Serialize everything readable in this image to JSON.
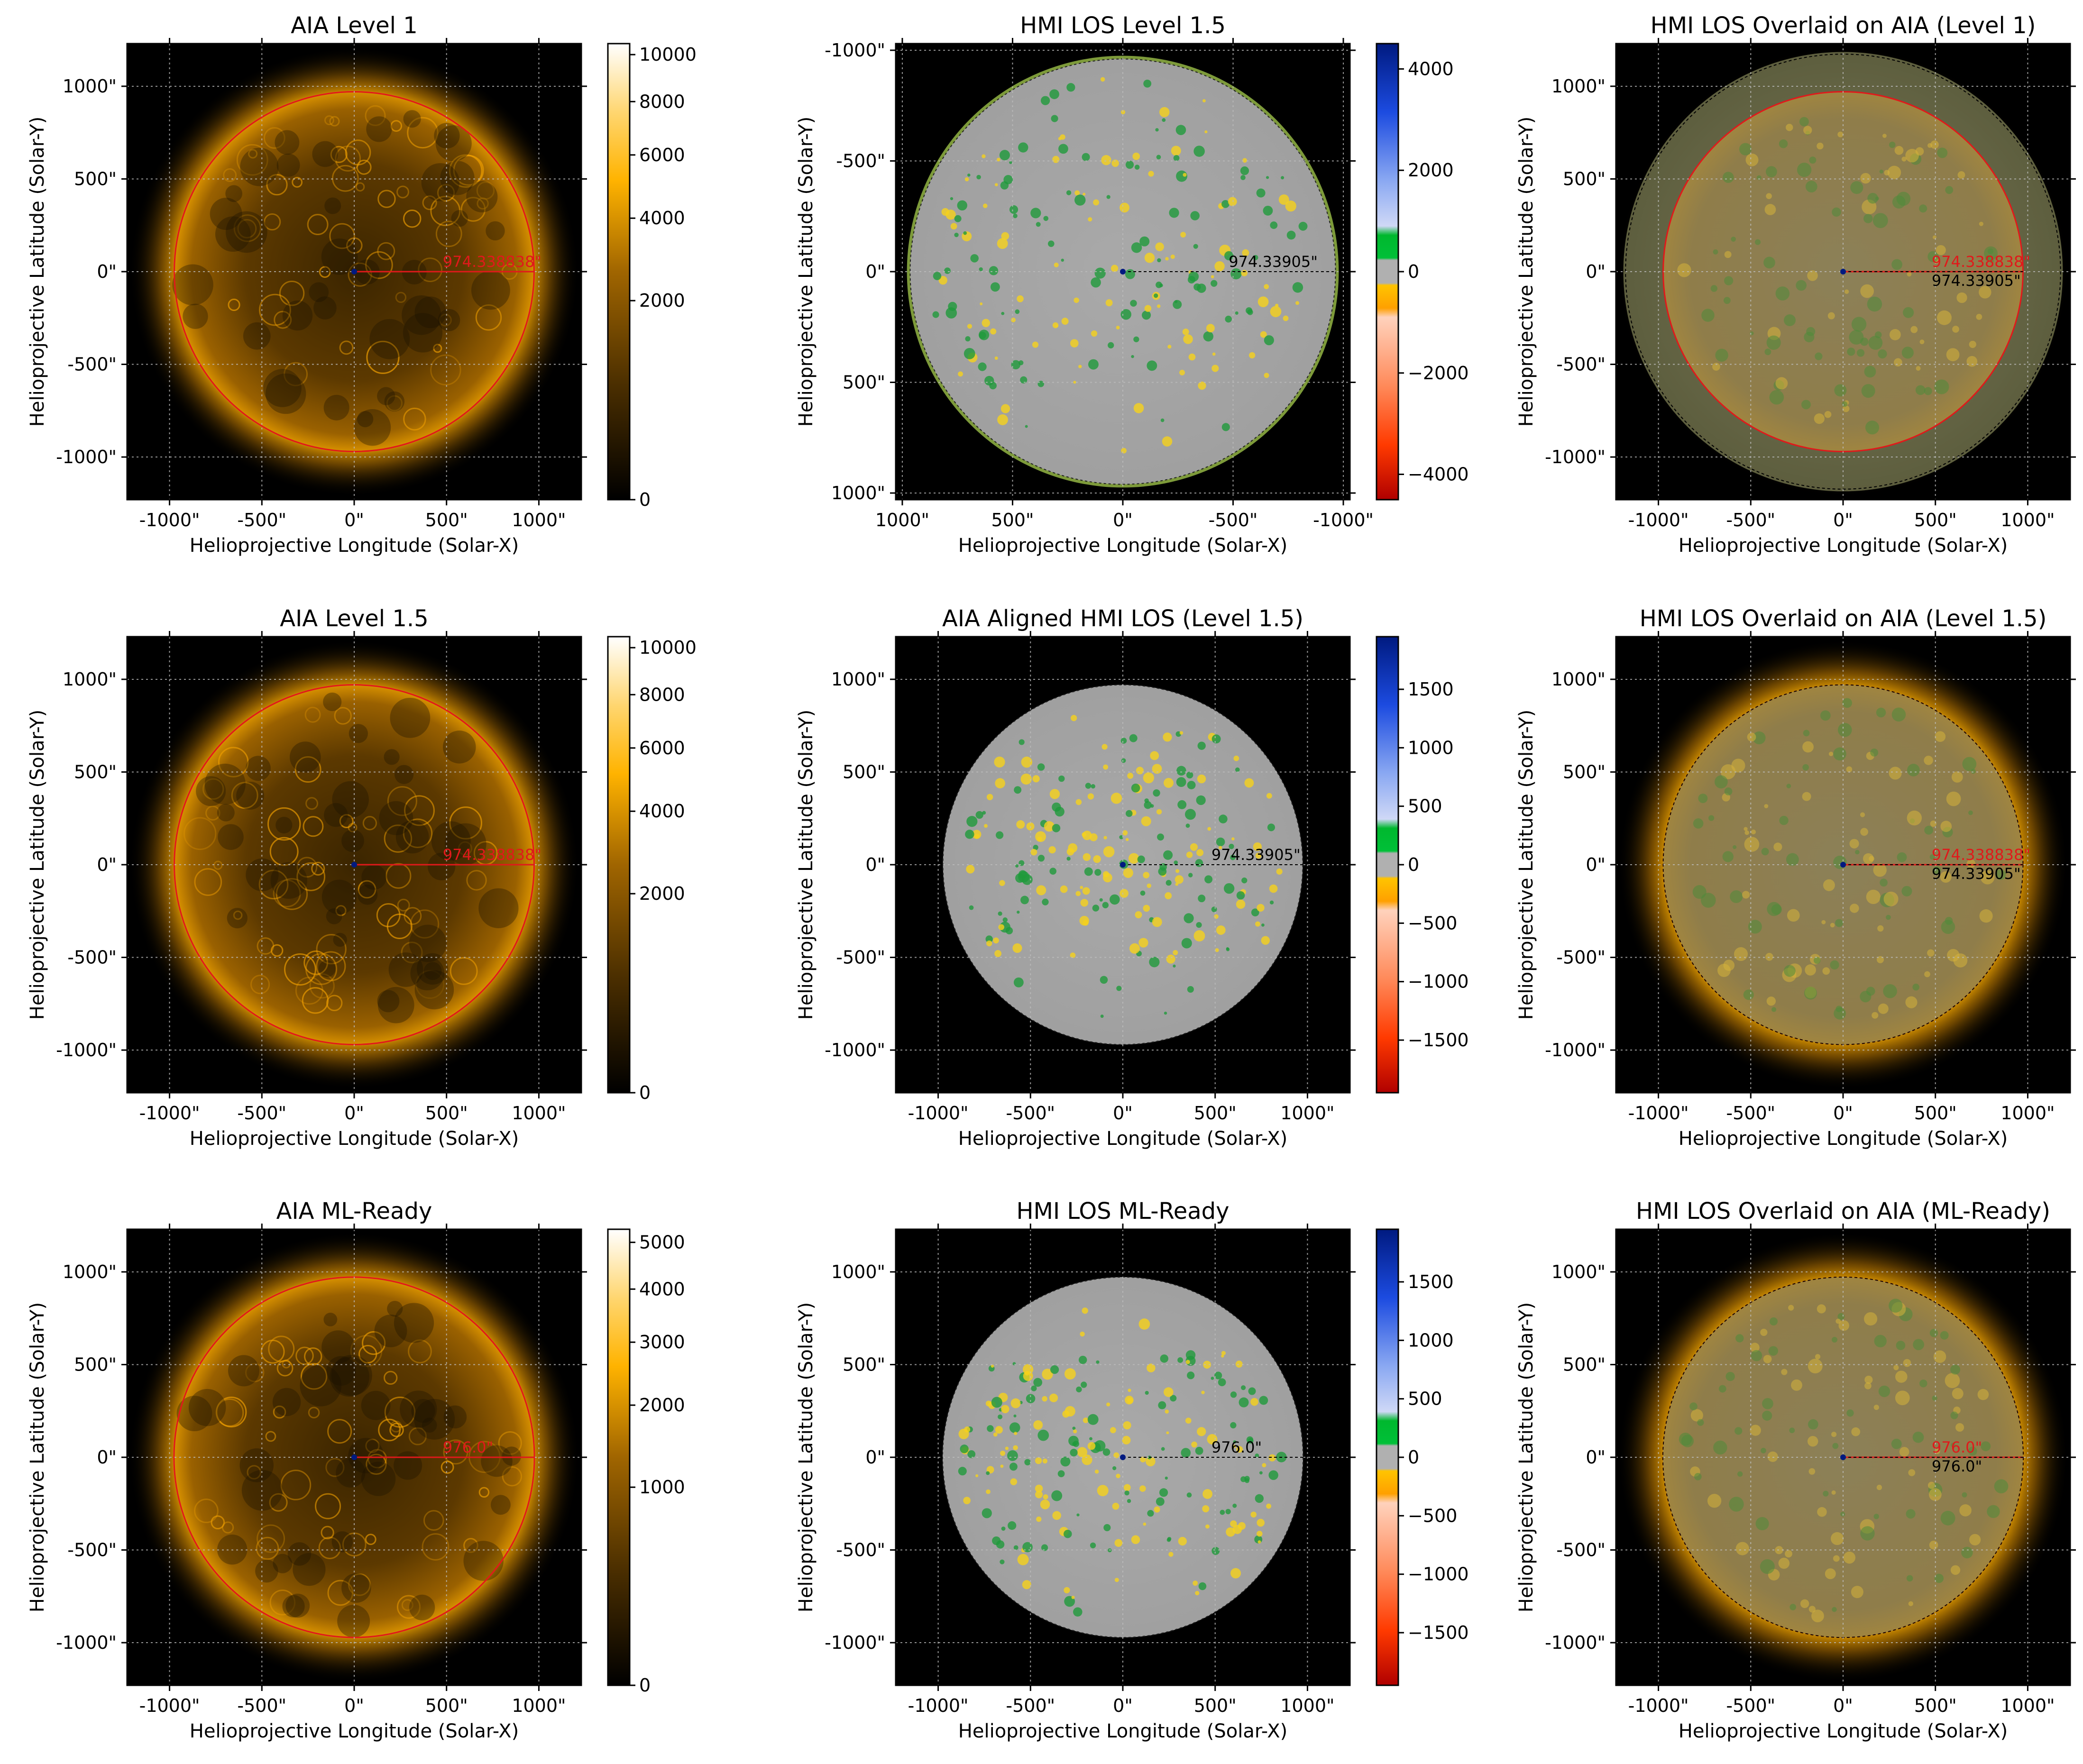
{
  "figure": {
    "background": "#ffffff"
  },
  "colors": {
    "aia_sun_core": "#3a2400",
    "aia_sun_mid": "#7a4b00",
    "aia_sun_limb": "#f2a400",
    "aia_corona": "#ffb300",
    "limb_circle": "#e0191b",
    "hmi_disk": "#a6a6a6",
    "hmi_positive": "#f6d21b",
    "hmi_negative": "#1f9a3b",
    "hmi_limb": "#7d9a3a",
    "overlay_disk": "#8a7c50",
    "radius_red": "#e0191b",
    "radius_black": "#000000",
    "center_dot": "#001a80",
    "grid": "#bdbdbd"
  },
  "chart_data": [
    {
      "id": "p11",
      "type": "heatmap",
      "kind": "aia",
      "title": "AIA Level 1",
      "xlabel": "Helioprojective Longitude (Solar-X)",
      "ylabel": "Helioprojective Latitude (Solar-Y)",
      "xlim": [
        -1230,
        1230
      ],
      "ylim": [
        -1230,
        1230
      ],
      "xticks": [
        -1000,
        -500,
        0,
        500,
        1000
      ],
      "xtick_labels": [
        "-1000\"",
        "-500\"",
        "0\"",
        "500\"",
        "1000\""
      ],
      "yticks": [
        1000,
        500,
        0,
        -500,
        -1000
      ],
      "ytick_labels": [
        "1000\"",
        "500\"",
        "0\"",
        "-500\"",
        "-1000\""
      ],
      "limb_radius": 974.338838,
      "radius_labels": [
        {
          "text": "974.338838\"",
          "color": "red"
        }
      ],
      "colorbar": {
        "scale": "sqrt",
        "min": 0,
        "max": 10500,
        "ticks": [
          0,
          2000,
          4000,
          6000,
          8000,
          10000
        ],
        "tick_labels": [
          "0",
          "2000",
          "4000",
          "6000",
          "8000",
          "10000"
        ]
      }
    },
    {
      "id": "p12",
      "type": "heatmap",
      "kind": "hmi",
      "title": "HMI LOS Level 1.5",
      "xlabel": "Helioprojective Longitude (Solar-X)",
      "ylabel": "Helioprojective Latitude (Solar-Y)",
      "xlim": [
        1030,
        -1030
      ],
      "ylim": [
        1030,
        -1030
      ],
      "xticks": [
        1000,
        500,
        0,
        -500,
        -1000
      ],
      "xtick_labels": [
        "1000\"",
        "500\"",
        "0\"",
        "-500\"",
        "-1000\""
      ],
      "yticks": [
        -1000,
        -500,
        0,
        500,
        1000
      ],
      "ytick_labels": [
        "-1000\"",
        "-500\"",
        "0\"",
        "500\"",
        "1000\""
      ],
      "limb_radius": 974.33905,
      "limb_ring": true,
      "radius_labels": [
        {
          "text": "974.33905\"",
          "color": "black"
        }
      ],
      "colorbar": {
        "scale": "linear",
        "min": -4500,
        "max": 4500,
        "ticks": [
          4000,
          2000,
          0,
          -2000,
          -4000
        ],
        "tick_labels": [
          "4000",
          "2000",
          "0",
          "−2000",
          "−4000"
        ]
      }
    },
    {
      "id": "p13",
      "type": "heatmap",
      "kind": "overlay",
      "title": "HMI LOS Overlaid on AIA (Level 1)",
      "xlabel": "Helioprojective Longitude (Solar-X)",
      "ylabel": "Helioprojective Latitude (Solar-Y)",
      "xlim": [
        -1230,
        1230
      ],
      "ylim": [
        -1230,
        1230
      ],
      "xticks": [
        -1000,
        -500,
        0,
        500,
        1000
      ],
      "xtick_labels": [
        "-1000\"",
        "-500\"",
        "0\"",
        "500\"",
        "1000\""
      ],
      "yticks": [
        1000,
        500,
        0,
        -500,
        -1000
      ],
      "ytick_labels": [
        "1000\"",
        "500\"",
        "0\"",
        "-500\"",
        "-1000\""
      ],
      "limb_radius": 974.338838,
      "outer_disk_radius": 1190,
      "radius_labels": [
        {
          "text": "974.338838\"",
          "color": "red"
        },
        {
          "text": "974.33905\"",
          "color": "black"
        }
      ]
    },
    {
      "id": "p21",
      "type": "heatmap",
      "kind": "aia",
      "title": "AIA Level 1.5",
      "xlabel": "Helioprojective Longitude (Solar-X)",
      "ylabel": "Helioprojective Latitude (Solar-Y)",
      "xlim": [
        -1230,
        1230
      ],
      "ylim": [
        -1230,
        1230
      ],
      "xticks": [
        -1000,
        -500,
        0,
        500,
        1000
      ],
      "xtick_labels": [
        "-1000\"",
        "-500\"",
        "0\"",
        "500\"",
        "1000\""
      ],
      "yticks": [
        1000,
        500,
        0,
        -500,
        -1000
      ],
      "ytick_labels": [
        "1000\"",
        "500\"",
        "0\"",
        "-500\"",
        "-1000\""
      ],
      "limb_radius": 974.338838,
      "radius_labels": [
        {
          "text": "974.338838\"",
          "color": "red"
        }
      ],
      "colorbar": {
        "scale": "sqrt",
        "min": 0,
        "max": 10500,
        "ticks": [
          0,
          2000,
          4000,
          6000,
          8000,
          10000
        ],
        "tick_labels": [
          "0",
          "2000",
          "4000",
          "6000",
          "8000",
          "10000"
        ]
      }
    },
    {
      "id": "p22",
      "type": "heatmap",
      "kind": "hmi",
      "title": "AIA Aligned HMI LOS (Level 1.5)",
      "xlabel": "Helioprojective Longitude (Solar-X)",
      "ylabel": "Helioprojective Latitude (Solar-Y)",
      "xlim": [
        -1230,
        1230
      ],
      "ylim": [
        -1230,
        1230
      ],
      "xticks": [
        -1000,
        -500,
        0,
        500,
        1000
      ],
      "xtick_labels": [
        "-1000\"",
        "-500\"",
        "0\"",
        "500\"",
        "1000\""
      ],
      "yticks": [
        1000,
        500,
        0,
        -500,
        -1000
      ],
      "ytick_labels": [
        "1000\"",
        "500\"",
        "0\"",
        "-500\"",
        "-1000\""
      ],
      "limb_radius": 974.33905,
      "radius_labels": [
        {
          "text": "974.33905\"",
          "color": "black"
        }
      ],
      "colorbar": {
        "scale": "linear",
        "min": -1950,
        "max": 1950,
        "ticks": [
          1500,
          1000,
          500,
          0,
          -500,
          -1000,
          -1500
        ],
        "tick_labels": [
          "1500",
          "1000",
          "500",
          "0",
          "−500",
          "−1000",
          "−1500"
        ]
      }
    },
    {
      "id": "p23",
      "type": "heatmap",
      "kind": "overlay",
      "title": "HMI LOS Overlaid on AIA (Level 1.5)",
      "xlabel": "Helioprojective Longitude (Solar-X)",
      "ylabel": "Helioprojective Latitude (Solar-Y)",
      "xlim": [
        -1230,
        1230
      ],
      "ylim": [
        -1230,
        1230
      ],
      "xticks": [
        -1000,
        -500,
        0,
        500,
        1000
      ],
      "xtick_labels": [
        "-1000\"",
        "-500\"",
        "0\"",
        "500\"",
        "1000\""
      ],
      "yticks": [
        1000,
        500,
        0,
        -500,
        -1000
      ],
      "ytick_labels": [
        "1000\"",
        "500\"",
        "0\"",
        "-500\"",
        "-1000\""
      ],
      "limb_radius": 974.338838,
      "radius_labels": [
        {
          "text": "974.338838\"",
          "color": "red"
        },
        {
          "text": "974.33905\"",
          "color": "black"
        }
      ]
    },
    {
      "id": "p31",
      "type": "heatmap",
      "kind": "aia",
      "title": "AIA ML-Ready",
      "xlabel": "Helioprojective Longitude (Solar-X)",
      "ylabel": "Helioprojective Latitude (Solar-Y)",
      "xlim": [
        -1230,
        1230
      ],
      "ylim": [
        -1230,
        1230
      ],
      "xticks": [
        -1000,
        -500,
        0,
        500,
        1000
      ],
      "xtick_labels": [
        "-1000\"",
        "-500\"",
        "0\"",
        "500\"",
        "1000\""
      ],
      "yticks": [
        1000,
        500,
        0,
        -500,
        -1000
      ],
      "ytick_labels": [
        "1000\"",
        "500\"",
        "0\"",
        "-500\"",
        "-1000\""
      ],
      "limb_radius": 976.0,
      "radius_labels": [
        {
          "text": "976.0\"",
          "color": "red"
        }
      ],
      "colorbar": {
        "scale": "sqrt",
        "min": 0,
        "max": 5300,
        "ticks": [
          0,
          1000,
          2000,
          3000,
          4000,
          5000
        ],
        "tick_labels": [
          "0",
          "1000",
          "2000",
          "3000",
          "4000",
          "5000"
        ]
      }
    },
    {
      "id": "p32",
      "type": "heatmap",
      "kind": "hmi",
      "title": "HMI LOS ML-Ready",
      "xlabel": "Helioprojective Longitude (Solar-X)",
      "ylabel": "Helioprojective Latitude (Solar-Y)",
      "xlim": [
        -1230,
        1230
      ],
      "ylim": [
        -1230,
        1230
      ],
      "xticks": [
        -1000,
        -500,
        0,
        500,
        1000
      ],
      "xtick_labels": [
        "-1000\"",
        "-500\"",
        "0\"",
        "500\"",
        "1000\""
      ],
      "yticks": [
        1000,
        500,
        0,
        -500,
        -1000
      ],
      "ytick_labels": [
        "1000\"",
        "500\"",
        "0\"",
        "-500\"",
        "-1000\""
      ],
      "limb_radius": 976.0,
      "radius_labels": [
        {
          "text": "976.0\"",
          "color": "black"
        }
      ],
      "colorbar": {
        "scale": "linear",
        "min": -1950,
        "max": 1950,
        "ticks": [
          1500,
          1000,
          500,
          0,
          -500,
          -1000,
          -1500
        ],
        "tick_labels": [
          "1500",
          "1000",
          "500",
          "0",
          "−500",
          "−1000",
          "−1500"
        ]
      }
    },
    {
      "id": "p33",
      "type": "heatmap",
      "kind": "overlay",
      "title": "HMI LOS Overlaid on AIA (ML-Ready)",
      "xlabel": "Helioprojective Longitude (Solar-X)",
      "ylabel": "Helioprojective Latitude (Solar-Y)",
      "xlim": [
        -1230,
        1230
      ],
      "ylim": [
        -1230,
        1230
      ],
      "xticks": [
        -1000,
        -500,
        0,
        500,
        1000
      ],
      "xtick_labels": [
        "-1000\"",
        "-500\"",
        "0\"",
        "500\"",
        "1000\""
      ],
      "yticks": [
        1000,
        500,
        0,
        -500,
        -1000
      ],
      "ytick_labels": [
        "1000\"",
        "500\"",
        "0\"",
        "-500\"",
        "-1000\""
      ],
      "limb_radius": 976.0,
      "radius_labels": [
        {
          "text": "976.0\"",
          "color": "red"
        },
        {
          "text": "976.0\"",
          "color": "black"
        }
      ]
    }
  ]
}
